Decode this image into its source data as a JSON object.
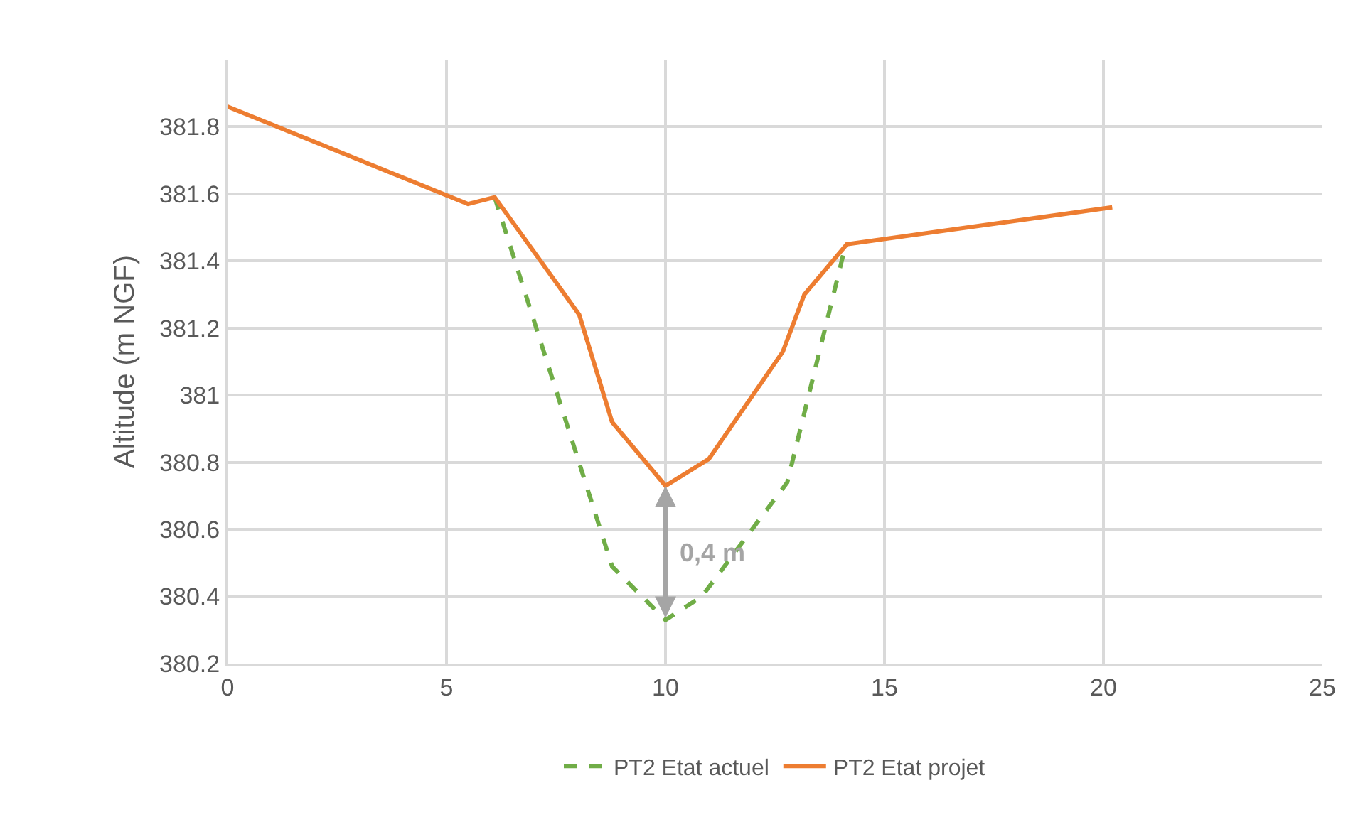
{
  "chart_data": {
    "type": "line",
    "ylabel": "Altitude (m NGF)",
    "xlim": [
      0,
      25
    ],
    "xticks": [
      0,
      5,
      10,
      15,
      20,
      25
    ],
    "ylim": [
      380.2,
      382
    ],
    "yticks": [
      380.2,
      380.4,
      380.6,
      380.8,
      381,
      381.2,
      381.4,
      381.6,
      381.8
    ],
    "grid": true,
    "legend": "bottom",
    "marker": "none",
    "series": [
      {
        "name": "PT2 Etat actuel",
        "color": "#70ad47",
        "line_style": "dashed",
        "x": [
          6.1,
          8.78,
          10,
          10.83,
          12.78,
          14.08
        ],
        "values": [
          381.59,
          380.49,
          380.33,
          380.4,
          380.74,
          381.43
        ]
      },
      {
        "name": "PT2 Etat projet",
        "color": "#ed7d31",
        "line_style": "solid",
        "x": [
          0,
          5.49,
          6.1,
          8.03,
          8.78,
          10,
          10.99,
          12.68,
          13.17,
          14.14,
          20.2
        ],
        "values": [
          381.86,
          381.57,
          381.59,
          381.24,
          380.92,
          380.73,
          380.81,
          381.13,
          381.3,
          381.45,
          381.56
        ]
      }
    ],
    "annotations": [
      {
        "text": "0,4 m",
        "x": 10,
        "y": 380.73
      }
    ]
  }
}
